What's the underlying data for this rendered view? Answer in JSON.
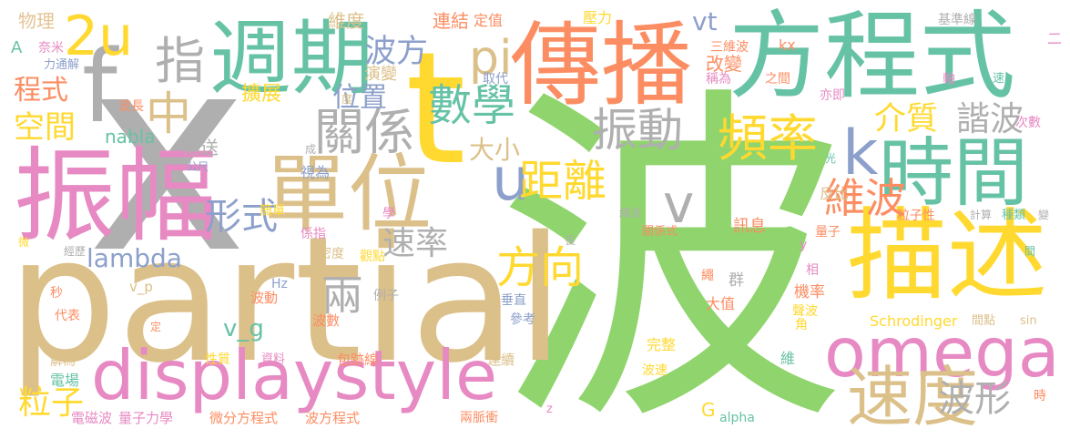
{
  "cloud": {
    "palette": {
      "green": "#8FD46C",
      "gray": "#AFAFAF",
      "tan": "#DCC08A",
      "teal": "#66C2A5",
      "orange": "#FC8D62",
      "pink": "#E78AC3",
      "yellow": "#FFD92F",
      "blue": "#8DA0CB",
      "brown": "#E5C494"
    },
    "words": [
      "波",
      "x",
      "partial",
      "t",
      "傳播",
      "方程式",
      "振幅",
      "週期",
      "單位",
      "描述",
      "displaystyle",
      "omega",
      "f",
      "時間",
      "速度",
      "2u",
      "指",
      "中",
      "數學",
      "k",
      "pi",
      "u",
      "v",
      "關係",
      "頻率",
      "振動",
      "距離",
      "方向",
      "維波",
      "形式",
      "粒子",
      "兩",
      "波形",
      "速率",
      "介質",
      "諧波",
      "位置",
      "大小",
      "程式",
      "空間",
      "波方",
      "lambda",
      "v_g",
      "vt",
      "nabla",
      "物理",
      "A",
      "奈米",
      "力通解",
      "維度",
      "連結",
      "定值",
      "壓力",
      "三維波",
      "改變",
      "擴展",
      "傳送",
      "公尺",
      "視為",
      "成",
      "度",
      "演變",
      "取代",
      "之間",
      "kx",
      "稱為",
      "軸",
      "亦即",
      "速",
      "次數",
      "光",
      "基準線",
      "二",
      "反比",
      "繩波",
      "係指",
      "學",
      "粒子性",
      "計算",
      "種類",
      "變",
      "間",
      "關係式",
      "訊息",
      "量子",
      "長",
      "簡單",
      "y",
      "微",
      "經歷",
      "密度",
      "觀點",
      "繩",
      "群",
      "相",
      "機率",
      "聲波",
      "大值",
      "垂直",
      "Hz",
      "v_p",
      "秒",
      "波動",
      "例子",
      "代表",
      "波數",
      "定",
      "參考",
      "角",
      "Schrodinger",
      "間點",
      "sin",
      "完整",
      "性質",
      "資料",
      "包跡線",
      "解為",
      "電場",
      "連續",
      "維",
      "波速",
      "電磁波",
      "量子力學",
      "微分方程式",
      "波方程式",
      "兩脈衝",
      "z",
      "G",
      "alpha",
      "時",
      "波長"
    ]
  }
}
